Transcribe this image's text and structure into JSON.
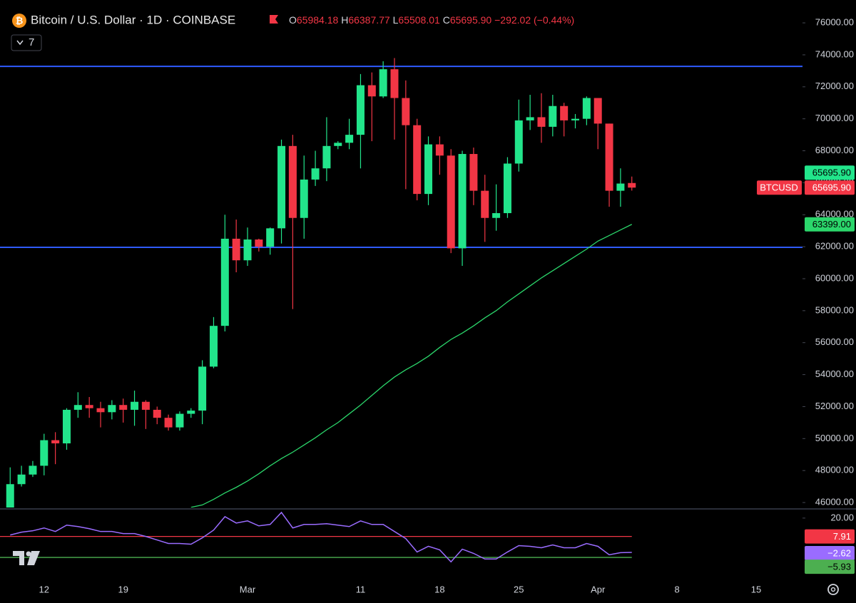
{
  "header": {
    "title": "Bitcoin / U.S. Dollar · 1D · COINBASE",
    "ohlc": [
      {
        "key": "O",
        "value": "65984.18"
      },
      {
        "key": "H",
        "value": "66387.77"
      },
      {
        "key": "L",
        "value": "65508.01"
      },
      {
        "key": "C",
        "value": "65695.90"
      }
    ],
    "change": "−292.02 (−0.44%)",
    "indicators": "7"
  },
  "chart_data": {
    "type": "candlestick",
    "categories": [
      null,
      null,
      null,
      "12",
      null,
      null,
      null,
      null,
      null,
      null,
      "19",
      null,
      null,
      null,
      null,
      null,
      null,
      null,
      null,
      null,
      null,
      "Mar",
      null,
      null,
      null,
      null,
      null,
      null,
      null,
      null,
      null,
      "11",
      null,
      null,
      null,
      null,
      null,
      null,
      "18",
      null,
      null,
      null,
      null,
      null,
      null,
      "25",
      null,
      null,
      null,
      null,
      null,
      null,
      "Apr",
      null,
      null,
      null,
      null,
      null,
      null,
      "8",
      null,
      null,
      null,
      null,
      null,
      null,
      "15",
      null,
      null,
      null,
      null
    ],
    "open": [
      45300,
      47150,
      47750,
      48300,
      49900,
      49700,
      51800,
      52100,
      51900,
      51650,
      52100,
      51800,
      52300,
      51800,
      51300,
      50700,
      51550,
      51750,
      54500,
      57050,
      62500,
      61150,
      62450,
      62000,
      63150,
      68300,
      63800,
      66200,
      66900,
      68300,
      68500,
      69000,
      72100,
      71400,
      73100,
      71300,
      69600,
      65300,
      68400,
      67700,
      61900,
      67800,
      65500,
      63800,
      64100,
      67200,
      69900,
      70100,
      69500,
      70800,
      69900,
      70000,
      71300,
      69700,
      65500,
      65984.18,
      null,
      null,
      null,
      null,
      null,
      null,
      null,
      null,
      null,
      null,
      null,
      null,
      null,
      null,
      null
    ],
    "high": [
      48200,
      48300,
      48600,
      50300,
      50400,
      51900,
      52900,
      52600,
      52300,
      52400,
      52500,
      53000,
      52400,
      52000,
      51500,
      51700,
      51900,
      54900,
      57600,
      64000,
      63700,
      63200,
      62500,
      63200,
      68700,
      69000,
      67700,
      68000,
      70100,
      68600,
      70000,
      72800,
      72900,
      73600,
      73800,
      72400,
      70000,
      68900,
      68900,
      68100,
      68000,
      68200,
      66500,
      65900,
      67600,
      71200,
      71500,
      71600,
      71500,
      71000,
      70300,
      71400,
      71300,
      69700,
      66900,
      66387.77,
      null,
      null,
      null,
      null,
      null,
      null,
      null,
      null,
      null,
      null,
      null,
      null,
      null,
      null,
      null
    ],
    "low": [
      45000,
      47000,
      47600,
      47700,
      48400,
      49300,
      51300,
      51300,
      50700,
      51200,
      51000,
      50800,
      50600,
      50900,
      50500,
      50500,
      51300,
      50900,
      54400,
      56700,
      60400,
      60800,
      61700,
      61500,
      62200,
      58100,
      62500,
      65800,
      66100,
      68100,
      68100,
      66900,
      68600,
      71300,
      68700,
      65600,
      64900,
      64600,
      66500,
      61600,
      60800,
      64600,
      62300,
      63000,
      63800,
      66700,
      69300,
      68500,
      68900,
      68900,
      69400,
      69600,
      68100,
      64500,
      64500,
      65508.01,
      null,
      null,
      null,
      null,
      null,
      null,
      null,
      null,
      null,
      null,
      null,
      null,
      null,
      null,
      null
    ],
    "close": [
      47150,
      47750,
      48300,
      49900,
      49700,
      51800,
      52100,
      51900,
      51650,
      52100,
      51800,
      52300,
      51800,
      51300,
      50700,
      51550,
      51750,
      54500,
      57050,
      62500,
      61150,
      62450,
      62000,
      63150,
      68300,
      63800,
      66200,
      66900,
      68300,
      68500,
      69000,
      72100,
      71400,
      73100,
      71300,
      69600,
      65300,
      68400,
      67700,
      61900,
      67800,
      65500,
      63800,
      64100,
      67200,
      69900,
      70100,
      69500,
      70800,
      69900,
      70000,
      71300,
      69700,
      65500,
      65950,
      65695.9,
      null,
      null,
      null,
      null,
      null,
      null,
      null,
      null,
      null,
      null,
      null,
      null,
      null,
      null,
      null
    ],
    "up_color": "#22e58b",
    "down_color": "#f23645",
    "ma": {
      "color": "#2bd66b",
      "values": [
        null,
        null,
        null,
        null,
        null,
        null,
        null,
        null,
        null,
        null,
        null,
        null,
        null,
        null,
        null,
        null,
        45700,
        45850,
        46200,
        46600,
        46950,
        47350,
        47800,
        48300,
        48750,
        49150,
        49600,
        50050,
        50550,
        51000,
        51550,
        52100,
        52700,
        53300,
        53850,
        54300,
        54700,
        55150,
        55700,
        56200,
        56600,
        57050,
        57550,
        58000,
        58550,
        59050,
        59550,
        60050,
        60500,
        60950,
        61400,
        61850,
        62350,
        62700,
        63050,
        63399,
        null,
        null,
        null,
        null,
        null,
        null,
        null,
        null,
        null,
        null,
        null,
        null,
        null,
        null,
        null
      ],
      "last": {
        "value": 63399,
        "label": "63399.00"
      }
    },
    "hlines": {
      "color": "#2f5bff",
      "values": [
        73280,
        61960
      ]
    },
    "last_price": {
      "value": 65695.9,
      "label": "65695.90"
    },
    "symbol": "BTCUSD",
    "ylim": [
      45690,
      77430
    ],
    "yticks": [
      {
        "value": 46000,
        "label": "46000.00"
      },
      {
        "value": 48000,
        "label": "48000.00"
      },
      {
        "value": 50000,
        "label": "50000.00"
      },
      {
        "value": 52000,
        "label": "52000.00"
      },
      {
        "value": 54000,
        "label": "54000.00"
      },
      {
        "value": 56000,
        "label": "56000.00"
      },
      {
        "value": 58000,
        "label": "58000.00"
      },
      {
        "value": 60000,
        "label": "60000.00"
      },
      {
        "value": 62000,
        "label": "62000.00"
      },
      {
        "value": 64000,
        "label": "64000.00"
      },
      {
        "value": 66000,
        "label": "66000.00"
      },
      {
        "value": 68000,
        "label": "68000.00"
      },
      {
        "value": 70000,
        "label": "70000.00"
      },
      {
        "value": 72000,
        "label": "72000.00"
      },
      {
        "value": 74000,
        "label": "74000.00"
      },
      {
        "value": 76000,
        "label": "76000.00"
      }
    ],
    "oscillator": {
      "color": "#9a6cff",
      "values": [
        8.84,
        10.7,
        11.63,
        13.49,
        11.16,
        15.35,
        14.42,
        13.02,
        11.16,
        11.16,
        9.77,
        9.77,
        7.91,
        5.58,
        3.26,
        3.26,
        2.79,
        6.98,
        12.09,
        20.93,
        16.74,
        18.14,
        14.88,
        15.81,
        23.72,
        13.49,
        15.81,
        15.81,
        16.28,
        15.35,
        14.42,
        18.14,
        15.81,
        15.81,
        11.16,
        6.51,
        -2.33,
        1.4,
        -0.93,
        -8.84,
        -0.47,
        -3.26,
        -6.98,
        -6.98,
        -2.33,
        1.86,
        1.4,
        0.47,
        2.33,
        0.47,
        0.47,
        3.26,
        1.4,
        -4.19,
        -2.79,
        -2.62,
        null,
        null,
        null,
        null,
        null,
        null,
        null,
        null,
        null,
        null,
        null,
        null,
        null,
        null,
        null
      ],
      "last": {
        "value": -2.62,
        "label": "−2.62"
      },
      "upper": {
        "value": 7.91,
        "color": "#f23645"
      },
      "lower": {
        "value": -5.93,
        "label": "−5.93",
        "color": "#4caf50"
      },
      "ylim": [
        -22.8,
        25.1
      ],
      "yticks": [
        {
          "value": 20,
          "label": "20.00"
        }
      ]
    }
  }
}
